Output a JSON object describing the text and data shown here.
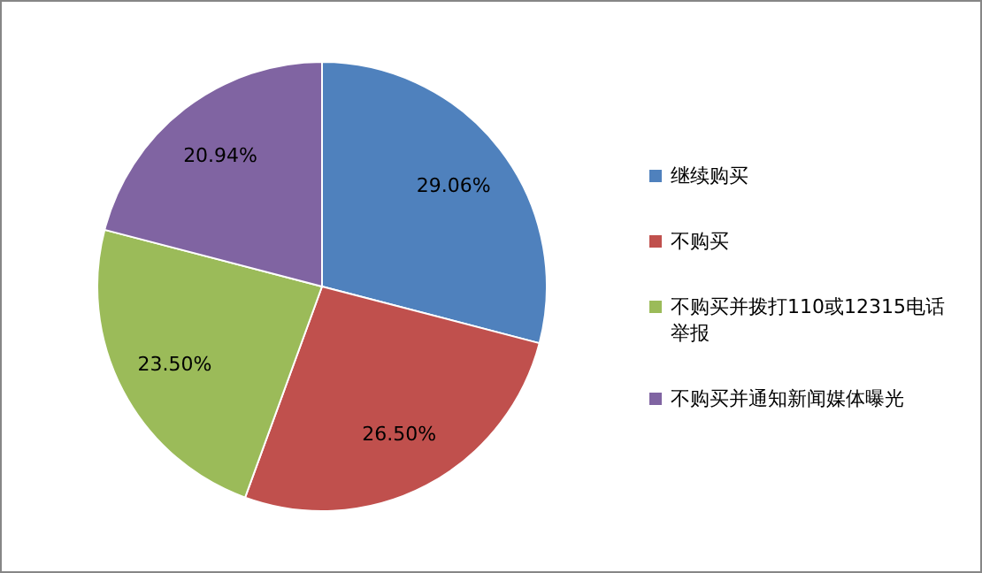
{
  "chart_data": {
    "type": "pie",
    "categories": [
      "继续购买",
      "不购买",
      "不购买并拨打110或12315电话举报",
      "不购买并通知新闻媒体曝光"
    ],
    "values": [
      29.06,
      26.5,
      23.5,
      20.94
    ],
    "colors": [
      "#4f81bd",
      "#c0504d",
      "#9bbb59",
      "#8064a2"
    ],
    "value_labels": [
      "29.06%",
      "26.50%",
      "23.50%",
      "20.94%"
    ],
    "legend": "right"
  }
}
